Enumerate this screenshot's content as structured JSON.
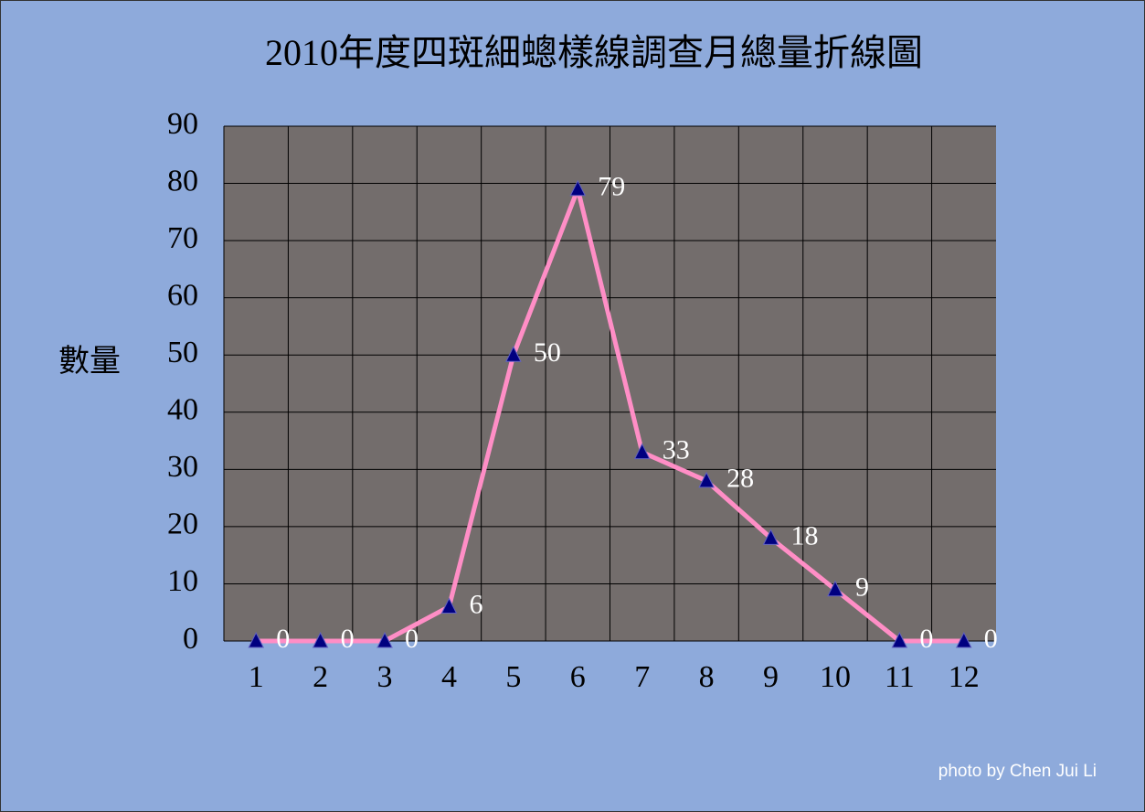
{
  "chart_data": {
    "type": "line",
    "title": "2010年度四斑細蟌樣線調查月總量折線圖",
    "y_label": "數量",
    "credit": "photo by Chen Jui Li",
    "categories": [
      "1",
      "2",
      "3",
      "4",
      "5",
      "6",
      "7",
      "8",
      "9",
      "10",
      "11",
      "12"
    ],
    "series": [
      {
        "name": "數量",
        "color": "#ff8ec6",
        "marker_color": "#000080",
        "values": [
          0,
          0,
          0,
          6,
          50,
          79,
          33,
          28,
          18,
          9,
          0,
          0
        ]
      }
    ],
    "ylim": [
      0,
      90
    ],
    "yticks": [
      0,
      10,
      20,
      30,
      40,
      50,
      60,
      70,
      80,
      90
    ],
    "grid": true,
    "plot_background": "#736d6c"
  }
}
